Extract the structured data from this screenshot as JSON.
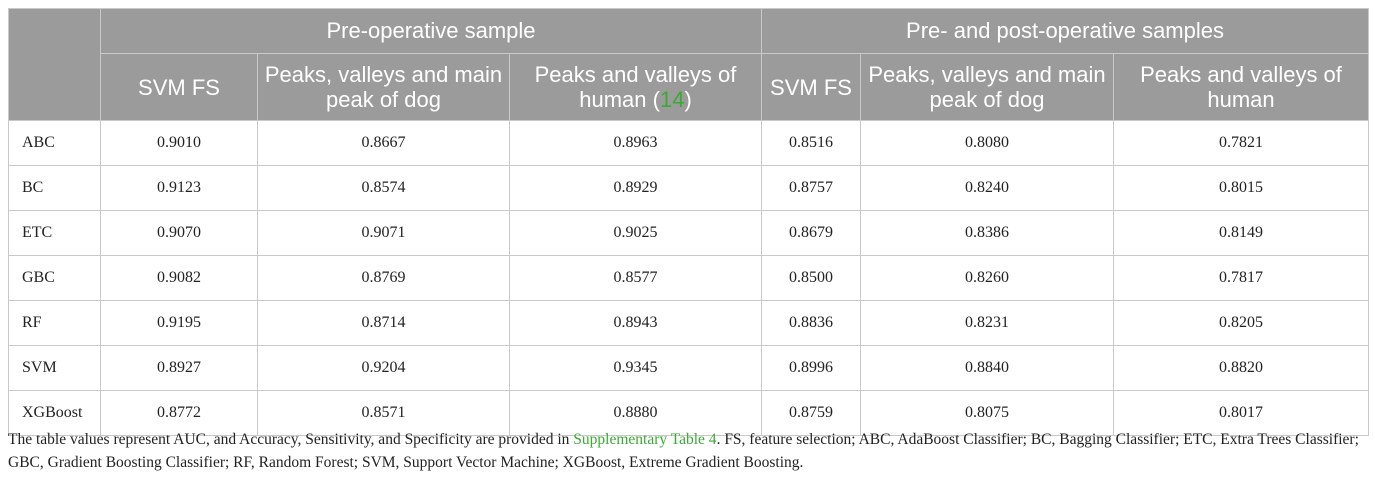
{
  "table": {
    "groups": [
      "Pre-operative sample",
      "Pre- and post-operative samples"
    ],
    "columns": [
      {
        "text": "SVM FS",
        "cite": ""
      },
      {
        "text": "Peaks, valleys and main peak of dog",
        "cite": ""
      },
      {
        "text": "Peaks and valleys of human",
        "cite": "14"
      },
      {
        "text": "SVM FS",
        "cite": ""
      },
      {
        "text": "Peaks, valleys and main peak of dog",
        "cite": ""
      },
      {
        "text": "Peaks and valleys of human",
        "cite": ""
      }
    ],
    "rows": [
      {
        "model": "ABC",
        "values": [
          "0.9010",
          "0.8667",
          "0.8963",
          "0.8516",
          "0.8080",
          "0.7821"
        ]
      },
      {
        "model": "BC",
        "values": [
          "0.9123",
          "0.8574",
          "0.8929",
          "0.8757",
          "0.8240",
          "0.8015"
        ]
      },
      {
        "model": "ETC",
        "values": [
          "0.9070",
          "0.9071",
          "0.9025",
          "0.8679",
          "0.8386",
          "0.8149"
        ]
      },
      {
        "model": "GBC",
        "values": [
          "0.9082",
          "0.8769",
          "0.8577",
          "0.8500",
          "0.8260",
          "0.7817"
        ]
      },
      {
        "model": "RF",
        "values": [
          "0.9195",
          "0.8714",
          "0.8943",
          "0.8836",
          "0.8231",
          "0.8205"
        ]
      },
      {
        "model": "SVM",
        "values": [
          "0.8927",
          "0.9204",
          "0.9345",
          "0.8996",
          "0.8840",
          "0.8820"
        ]
      },
      {
        "model": "XGBoost",
        "values": [
          "0.8772",
          "0.8571",
          "0.8880",
          "0.8759",
          "0.8075",
          "0.8017"
        ]
      }
    ]
  },
  "footnote": {
    "before": "The table values represent AUC, and Accuracy, Sensitivity, and Specificity are provided in ",
    "link": "Supplementary Table 4",
    "after": ". FS, feature selection; ABC, AdaBoost Classifier; BC, Bagging Classifier; ETC, Extra Trees Classifier; GBC, Gradient Boosting Classifier; RF, Random Forest; SVM, Support Vector Machine; XGBoost, Extreme Gradient Boosting."
  },
  "colors": {
    "header_bg": "#9b9b9b",
    "link": "#3aaa35",
    "border": "#c9c9c9"
  }
}
